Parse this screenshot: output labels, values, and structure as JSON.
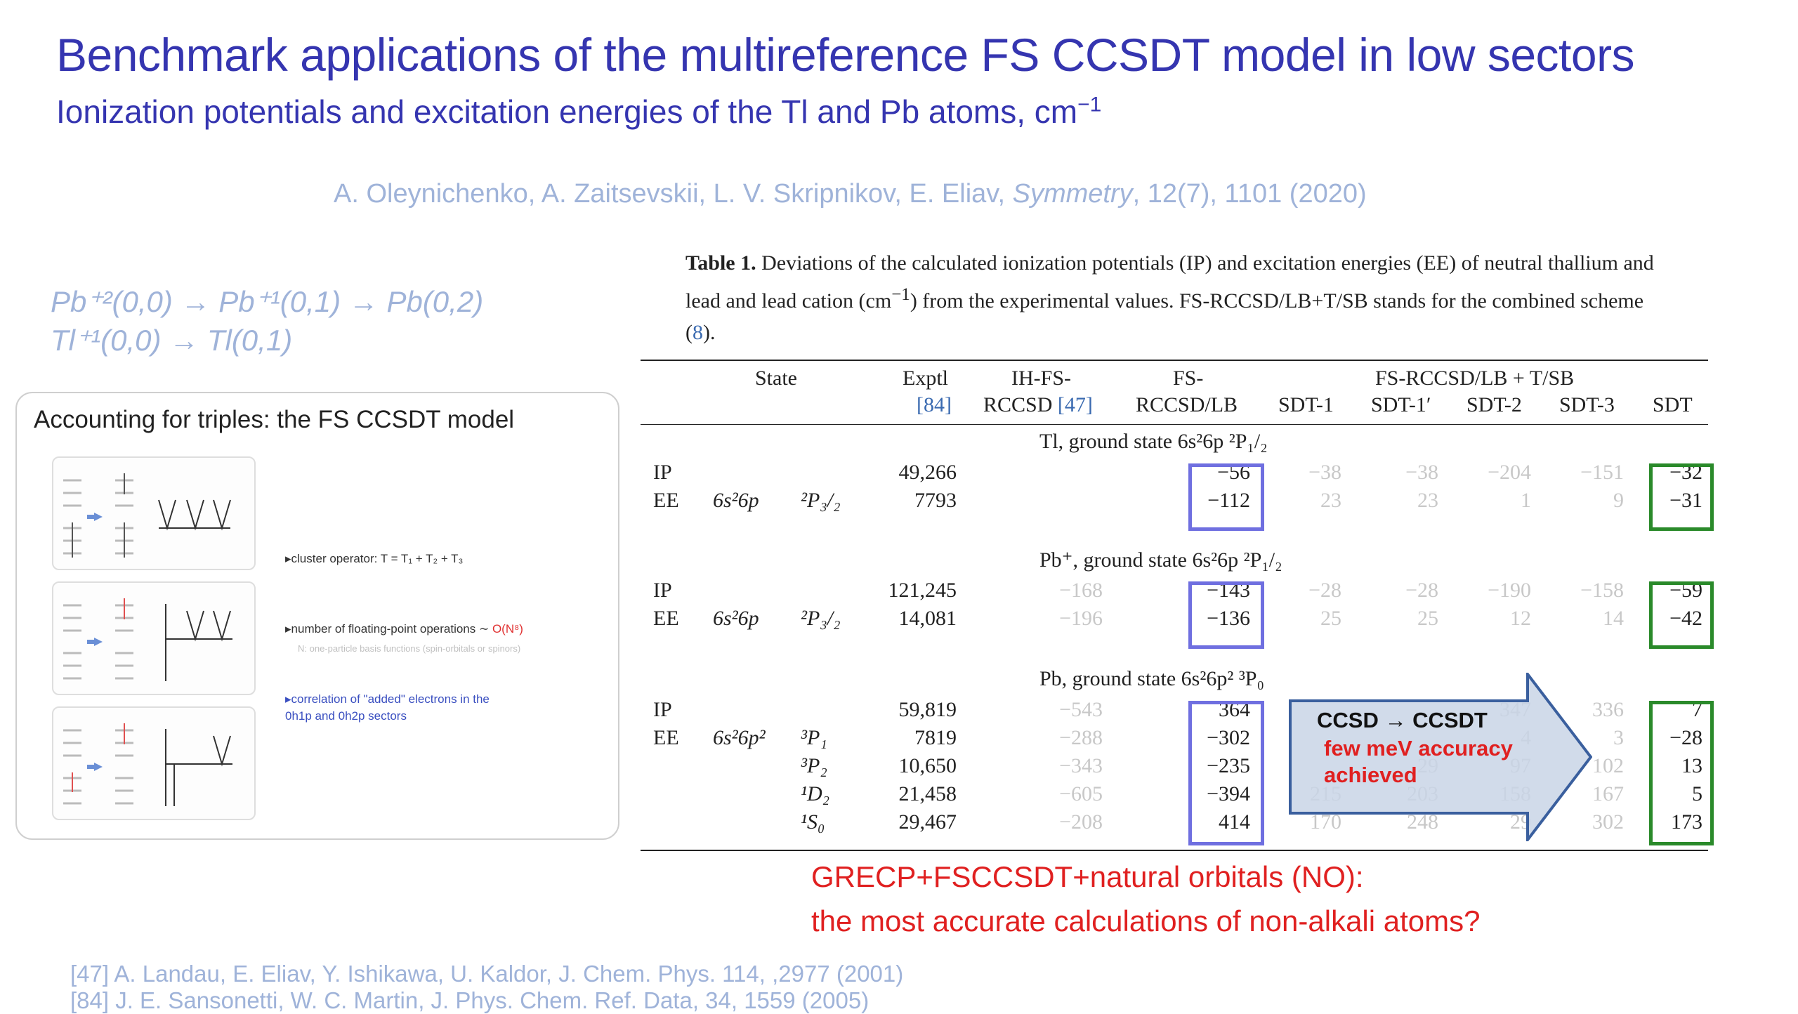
{
  "title": "Benchmark applications of the multireference  FS CCSDT model in low sectors",
  "subtitle": "Ionization potentials and excitation energies of the Tl and Pb atoms, cm",
  "subtitle_unit_power": "−1",
  "authors": {
    "names": "A. Oleynichenko, A. Zaitsevskii, L. V. Skripnikov, E. Eliav,",
    "journal": "Symmetry",
    "ref": ", 12(7), 1101 (2020)"
  },
  "scheme": {
    "line1": "Pb⁺²(0,0) → Pb⁺¹(0,1) → Pb(0,2)",
    "line2": "Tl⁺¹(0,0) → Tl(0,1)"
  },
  "triples_box": {
    "title": "Accounting for triples: the FS CCSDT model",
    "bullet1": "▸cluster operator:     T  =  T₁ + T₂ + T₃",
    "bullet2": "▸number of floating-point operations ∼ ",
    "bullet2_red": "O(N⁸)",
    "bullet2_note": "N: one-particle basis functions (spin-orbitals or spinors)",
    "bullet3_line1": "▸correlation of \"added\" electrons in the",
    "bullet3_line2": "0h1p and 0h2p sectors"
  },
  "table": {
    "caption_bold": "Table 1.",
    "caption_text1": " Deviations of the calculated ionization potentials (IP) and excitation energies (EE) of neutral thallium and lead and lead cation (cm",
    "caption_sup": "−1",
    "caption_text2": ") from the experimental values. FS-RCCSD/LB+T/SB stands for the combined scheme (",
    "caption_ref": "8",
    "caption_text3": ").",
    "headers": {
      "state": "State",
      "exptl1": "Exptl",
      "exptl2_ref": "[84]",
      "ih1": "IH-FS-",
      "ih2": "RCCSD",
      "ih2_ref": " [47]",
      "fs1": "FS-",
      "fs2": "RCCSD/LB",
      "group": "FS-RCCSD/LB + T/SB",
      "sdt1": "SDT-1",
      "sdt1p": "SDT-1′",
      "sdt2": "SDT-2",
      "sdt3": "SDT-3",
      "sdt": "SDT"
    },
    "groups": [
      {
        "label": "Tl, ground state 6s²6p  ²P₁/₂",
        "rows": [
          {
            "kind": "IP",
            "config": "",
            "term": "",
            "exptl": "49,266",
            "ih": "",
            "fs": "−56",
            "sdt1": "−38",
            "sdt1p": "−38",
            "sdt2": "−204",
            "sdt3": "−151",
            "sdt": "−32"
          },
          {
            "kind": "EE",
            "config": "6s²6p",
            "term": "²P₃/₂",
            "exptl": "7793",
            "ih": "",
            "fs": "−112",
            "sdt1": "23",
            "sdt1p": "23",
            "sdt2": "1",
            "sdt3": "9",
            "sdt": "−31"
          }
        ]
      },
      {
        "label": "Pb⁺, ground state 6s²6p  ²P₁/₂",
        "rows": [
          {
            "kind": "IP",
            "config": "",
            "term": "",
            "exptl": "121,245",
            "ih": "−168",
            "fs": "−143",
            "sdt1": "−28",
            "sdt1p": "−28",
            "sdt2": "−190",
            "sdt3": "−158",
            "sdt": "−59"
          },
          {
            "kind": "EE",
            "config": "6s²6p",
            "term": "²P₃/₂",
            "exptl": "14,081",
            "ih": "−196",
            "fs": "−136",
            "sdt1": "25",
            "sdt1p": "25",
            "sdt2": "12",
            "sdt3": "14",
            "sdt": "−42"
          }
        ]
      },
      {
        "label": "Pb, ground state 6s²6p²  ³P₀",
        "rows": [
          {
            "kind": "IP",
            "config": "",
            "term": "",
            "exptl": "59,819",
            "ih": "−543",
            "fs": "364",
            "sdt1": "",
            "sdt1p": "",
            "sdt2": "347",
            "sdt3": "336",
            "sdt": "7"
          },
          {
            "kind": "EE",
            "config": "6s²6p²",
            "term": "³P₁",
            "exptl": "7819",
            "ih": "−288",
            "fs": "−302",
            "sdt1": "",
            "sdt1p": "",
            "sdt2": "4",
            "sdt3": "3",
            "sdt": "−28"
          },
          {
            "kind": "",
            "config": "",
            "term": "³P₂",
            "exptl": "10,650",
            "ih": "−343",
            "fs": "−235",
            "sdt1": "",
            "sdt1p": "29",
            "sdt2": "97",
            "sdt3": "102",
            "sdt": "13"
          },
          {
            "kind": "",
            "config": "",
            "term": "¹D₂",
            "exptl": "21,458",
            "ih": "−605",
            "fs": "−394",
            "sdt1": "215",
            "sdt1p": "203",
            "sdt2": "158",
            "sdt3": "167",
            "sdt": "5"
          },
          {
            "kind": "",
            "config": "",
            "term": "¹S₀",
            "exptl": "29,467",
            "ih": "−208",
            "fs": "414",
            "sdt1": "170",
            "sdt1p": "248",
            "sdt2": "29",
            "sdt3": "302",
            "sdt": "173"
          }
        ]
      }
    ]
  },
  "callout": {
    "line1": "CCSD → CCSDT",
    "line2": "few meV accuracy",
    "line3": "achieved"
  },
  "conclusion": {
    "line1": "GRECP+FSCCSDT+natural orbitals (NO):",
    "line2": "the most accurate calculations of non-alkali atoms?"
  },
  "references": {
    "ref47": "[47] A. Landau, E. Eliav, Y. Ishikawa, U. Kaldor, J. Chem. Phys. 114, ,2977 (2001)",
    "ref84": "[84] J. E. Sansonetti, W. C. Martin, J. Phys. Chem. Ref. Data, 34, 1559 (2005)"
  },
  "colors": {
    "title": "#3535b0",
    "light_blue": "#9fb3d9",
    "red": "#e02020",
    "blue_box": "#6f6fe0",
    "green_box": "#2a8a2a",
    "callout_fill": "#c9d5e6"
  }
}
